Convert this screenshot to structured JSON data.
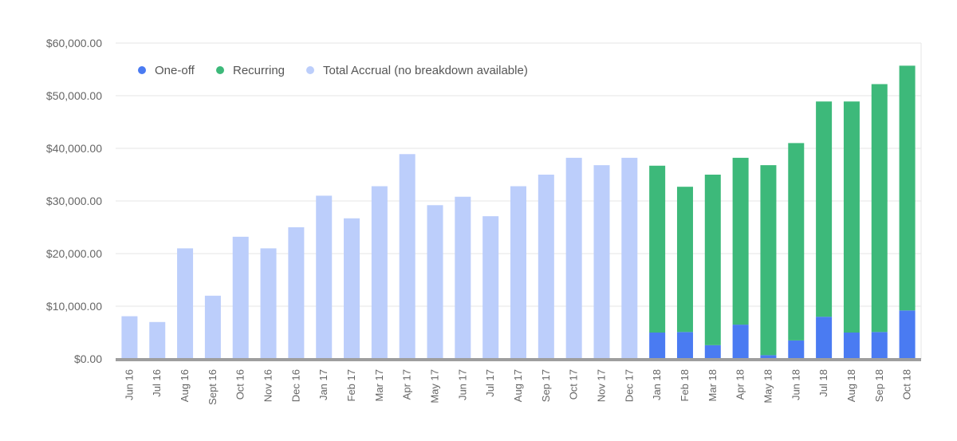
{
  "chart_data": {
    "type": "bar",
    "stacked": true,
    "categories": [
      "Jun 16",
      "Jul 16",
      "Aug 16",
      "Sept 16",
      "Oct 16",
      "Nov 16",
      "Dec 16",
      "Jan 17",
      "Feb 17",
      "Mar 17",
      "Apr 17",
      "May 17",
      "Jun 17",
      "Jul 17",
      "Aug 17",
      "Sep 17",
      "Oct 17",
      "Nov 17",
      "Dec 17",
      "Jan 18",
      "Feb 18",
      "Mar 18",
      "Apr 18",
      "May 18",
      "Jun 18",
      "Jul 18",
      "Aug 18",
      "Sep 18",
      "Oct 18"
    ],
    "series": [
      {
        "name": "One-off",
        "color": "#4A7BF2",
        "values": [
          0,
          0,
          0,
          0,
          0,
          0,
          0,
          0,
          0,
          0,
          0,
          0,
          0,
          0,
          0,
          0,
          0,
          0,
          0,
          5000,
          5100,
          2600,
          6500,
          700,
          3500,
          8000,
          5000,
          5100,
          9200
        ]
      },
      {
        "name": "Recurring",
        "color": "#3DB97A",
        "values": [
          0,
          0,
          0,
          0,
          0,
          0,
          0,
          0,
          0,
          0,
          0,
          0,
          0,
          0,
          0,
          0,
          0,
          0,
          0,
          31700,
          27600,
          32400,
          31700,
          36100,
          37500,
          40900,
          43900,
          47100,
          46500
        ]
      },
      {
        "name": "Total Accrual (no breakdown available)",
        "color": "#BCCEFB",
        "values": [
          8100,
          7000,
          21000,
          12000,
          23200,
          21000,
          25000,
          31000,
          26700,
          32800,
          38900,
          29200,
          30800,
          27100,
          32800,
          35000,
          38200,
          36800,
          38200,
          0,
          0,
          0,
          0,
          0,
          0,
          0,
          0,
          0,
          0
        ]
      }
    ],
    "y_ticks": [
      "$0.00",
      "$10,000.00",
      "$20,000.00",
      "$30,000.00",
      "$40,000.00",
      "$50,000.00",
      "$60,000.00"
    ],
    "ylim": [
      0,
      60000
    ],
    "title": "",
    "xlabel": "",
    "ylabel": "",
    "grid": true,
    "legend_position": "top-left"
  }
}
